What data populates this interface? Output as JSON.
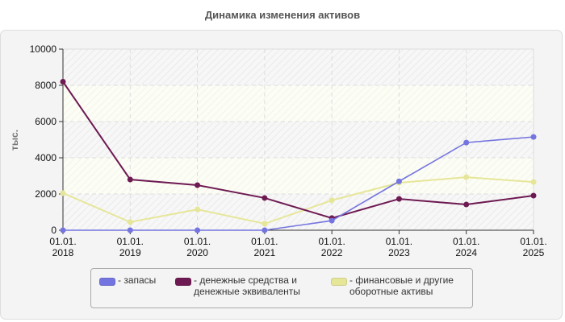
{
  "title": "Динамика изменения активов",
  "colors": {
    "zapasy": "#7474e0",
    "cash": "#6e1a52",
    "fin": "#e6e699",
    "panel_bg": "#f4f4f4",
    "grid": "#dddddd",
    "axis": "#333333"
  },
  "legend": {
    "items": [
      {
        "label": "- запасы",
        "color": "#7474e0"
      },
      {
        "label": "- денежные средства и\nденежные эквиваленты",
        "color": "#6e1a52"
      },
      {
        "label": "- финансовые и другие\nоборотные активы",
        "color": "#e6e699"
      }
    ]
  },
  "chart_data": {
    "type": "line",
    "title": "Динамика изменения активов",
    "xlabel": "",
    "ylabel": "тыс.",
    "categories": [
      "01.01.\n2018",
      "01.01.\n2019",
      "01.01.\n2020",
      "01.01.\n2021",
      "01.01.\n2022",
      "01.01.\n2023",
      "01.01.\n2024",
      "01.01.\n2025"
    ],
    "ylim": [
      0,
      10000
    ],
    "yticks": [
      0,
      2000,
      4000,
      6000,
      8000,
      10000
    ],
    "grid": true,
    "legend_position": "bottom",
    "series": [
      {
        "name": "запасы",
        "color": "#7474e0",
        "values": [
          0,
          0,
          0,
          0,
          530,
          2700,
          4840,
          5150
        ]
      },
      {
        "name": "денежные средства и денежные эквиваленты",
        "color": "#6e1a52",
        "values": [
          8200,
          2800,
          2490,
          1780,
          670,
          1730,
          1420,
          1910
        ]
      },
      {
        "name": "финансовые и другие оборотные активы",
        "color": "#e6e699",
        "values": [
          2050,
          450,
          1150,
          360,
          1650,
          2620,
          2930,
          2660
        ]
      }
    ]
  }
}
